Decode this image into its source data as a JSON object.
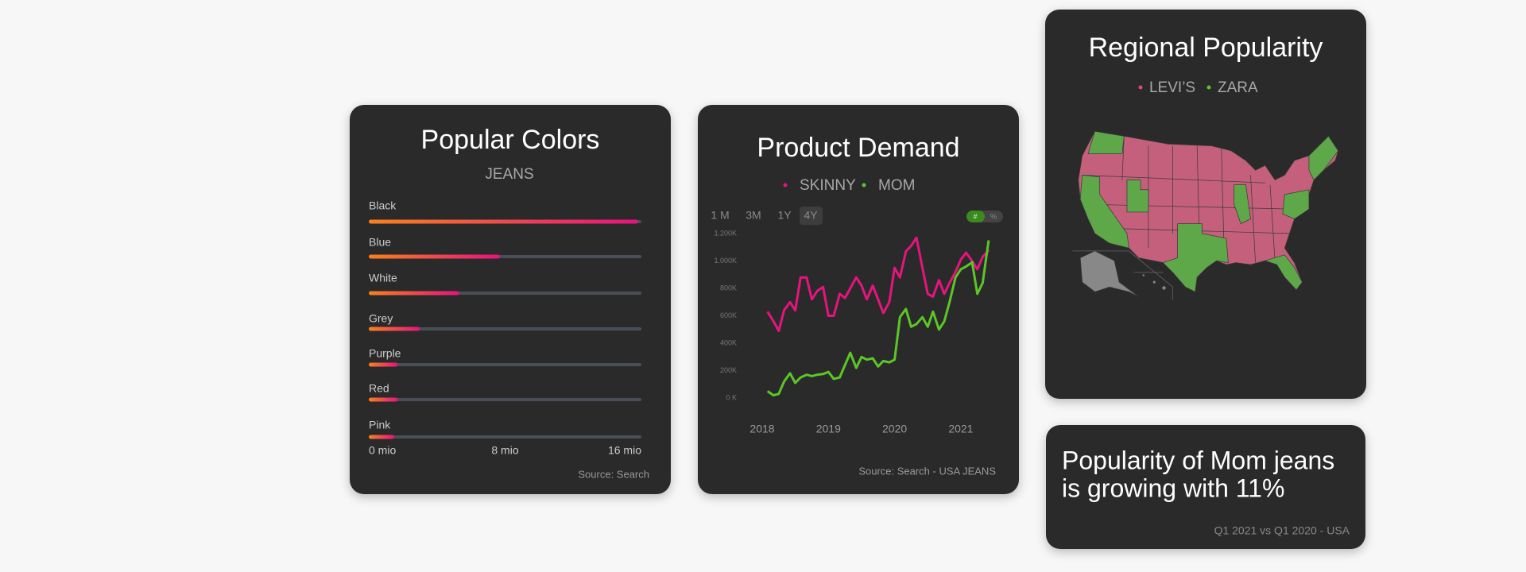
{
  "chart_data": [
    {
      "type": "bar",
      "orientation": "horizontal",
      "title": "Popular Colors",
      "subtitle": "JEANS",
      "categories": [
        "Black",
        "Blue",
        "White",
        "Grey",
        "Purple",
        "Red",
        "Pink"
      ],
      "values": [
        15.8,
        7.7,
        5.3,
        3.0,
        1.7,
        1.7,
        1.5
      ],
      "colors": [
        "#f7821b",
        "#e6137f"
      ],
      "track_color": "#4a4f57",
      "xlim": [
        0,
        16
      ],
      "xticks": [
        {
          "value": 0,
          "label": "0 mio"
        },
        {
          "value": 8,
          "label": "8 mio"
        },
        {
          "value": 16,
          "label": "16 mio"
        }
      ],
      "source": "Source:  Search"
    },
    {
      "type": "line",
      "title": "Product Demand",
      "ranges": [
        "1 M",
        "3M",
        "1Y",
        "4Y"
      ],
      "active_range": 3,
      "toggle": [
        "#",
        "%"
      ],
      "x": [
        2018.08,
        2018.17,
        2018.25,
        2018.33,
        2018.42,
        2018.5,
        2018.58,
        2018.67,
        2018.75,
        2018.83,
        2018.92,
        2019.0,
        2019.08,
        2019.17,
        2019.25,
        2019.33,
        2019.42,
        2019.5,
        2019.58,
        2019.67,
        2019.75,
        2019.83,
        2019.92,
        2020.0,
        2020.08,
        2020.17,
        2020.25,
        2020.33,
        2020.42,
        2020.5,
        2020.58,
        2020.67,
        2020.75,
        2020.83,
        2020.92,
        2021.0,
        2021.08,
        2021.17,
        2021.25,
        2021.33,
        2021.42
      ],
      "series": [
        {
          "name": "SKINNY",
          "color": "#e6147f",
          "values": [
            630,
            560,
            490,
            640,
            700,
            640,
            880,
            880,
            720,
            780,
            810,
            600,
            600,
            760,
            730,
            800,
            880,
            820,
            720,
            820,
            720,
            620,
            700,
            950,
            880,
            1070,
            1110,
            1170,
            950,
            760,
            740,
            860,
            760,
            840,
            920,
            1010,
            1060,
            1000,
            940,
            1030,
            1080
          ]
        },
        {
          "name": "MOM",
          "color": "#5bc726",
          "values": [
            50,
            20,
            30,
            120,
            180,
            110,
            150,
            170,
            160,
            170,
            175,
            190,
            140,
            150,
            240,
            330,
            220,
            300,
            280,
            290,
            230,
            270,
            260,
            280,
            590,
            650,
            520,
            540,
            590,
            520,
            630,
            500,
            560,
            700,
            880,
            940,
            960,
            990,
            760,
            840,
            1150
          ]
        }
      ],
      "xlim": [
        2017.8,
        2021.5
      ],
      "xticks": [
        2018,
        2019,
        2020,
        2021
      ],
      "ylim": [
        0,
        1200
      ],
      "yticks": [
        {
          "value": 0,
          "label": "0 K"
        },
        {
          "value": 200,
          "label": "200K"
        },
        {
          "value": 400,
          "label": "400K"
        },
        {
          "value": 600,
          "label": "600K"
        },
        {
          "value": 800,
          "label": "800K"
        },
        {
          "value": 1000,
          "label": "1.000K"
        },
        {
          "value": 1200,
          "label": "1.200K"
        }
      ],
      "source": "Source:  Search - USA JEANS"
    }
  ],
  "map": {
    "title": "Regional Popularity",
    "legend": [
      {
        "name": "LEVI’S",
        "color": "#e0467c"
      },
      {
        "name": "ZARA",
        "color": "#5ac828"
      }
    ]
  },
  "insight": {
    "headline": [
      "Popularity of Mom jeans",
      "is growing with 11%"
    ],
    "note": "Q1 2021 vs Q1 2020 - USA"
  }
}
